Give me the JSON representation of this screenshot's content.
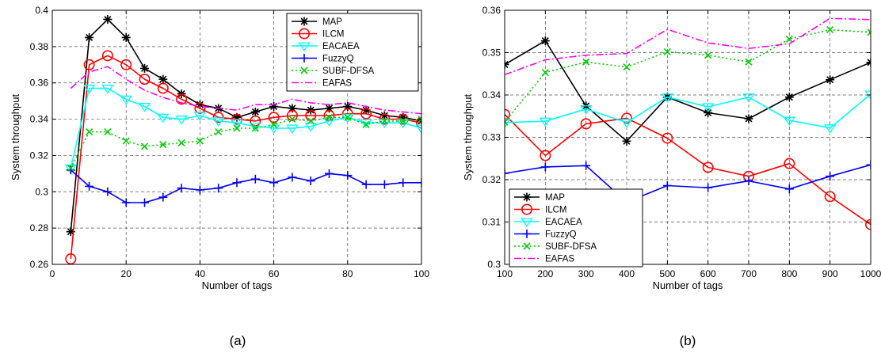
{
  "chart_data": [
    {
      "type": "line",
      "panel_label": "(a)",
      "xlabel": "Number of tags",
      "ylabel": "System throughput",
      "xlim": [
        0,
        100
      ],
      "ylim": [
        0.26,
        0.4
      ],
      "xticks": [
        0,
        20,
        40,
        60,
        80,
        100
      ],
      "yticks": [
        0.26,
        0.28,
        0.3,
        0.32,
        0.34,
        0.36,
        0.38,
        0.4
      ],
      "xtick_labels": [
        "0",
        "20",
        "40",
        "60",
        "80",
        "100"
      ],
      "ytick_labels": [
        "0.26",
        "0.28",
        "0.3",
        "0.32",
        "0.34",
        "0.36",
        "0.38",
        "0.4"
      ],
      "grid": true,
      "legend_position": "top-right",
      "x": [
        5,
        10,
        15,
        20,
        25,
        30,
        35,
        40,
        45,
        50,
        55,
        60,
        65,
        70,
        75,
        80,
        85,
        90,
        95,
        100
      ],
      "series": [
        {
          "name": "MAP",
          "values": [
            0.278,
            0.385,
            0.395,
            0.385,
            0.368,
            0.362,
            0.354,
            0.348,
            0.346,
            0.341,
            0.344,
            0.347,
            0.346,
            0.345,
            0.346,
            0.347,
            0.345,
            0.342,
            0.341,
            0.339
          ]
        },
        {
          "name": "ILCM",
          "values": [
            0.263,
            0.37,
            0.375,
            0.37,
            0.362,
            0.357,
            0.351,
            0.346,
            0.341,
            0.34,
            0.339,
            0.341,
            0.342,
            0.342,
            0.342,
            0.343,
            0.343,
            0.34,
            0.34,
            0.338
          ]
        },
        {
          "name": "EACAEA",
          "values": [
            0.313,
            0.357,
            0.357,
            0.351,
            0.347,
            0.341,
            0.34,
            0.342,
            0.339,
            0.338,
            0.336,
            0.335,
            0.335,
            0.336,
            0.339,
            0.341,
            0.338,
            0.338,
            0.338,
            0.335
          ]
        },
        {
          "name": "FuzzyQ",
          "values": [
            0.312,
            0.303,
            0.3,
            0.294,
            0.294,
            0.297,
            0.302,
            0.301,
            0.302,
            0.305,
            0.307,
            0.305,
            0.308,
            0.306,
            0.31,
            0.309,
            0.304,
            0.304,
            0.305,
            0.305
          ]
        },
        {
          "name": "SUBF-DFSA",
          "values": [
            0.313,
            0.333,
            0.333,
            0.328,
            0.325,
            0.326,
            0.327,
            0.328,
            0.333,
            0.335,
            0.335,
            0.337,
            0.34,
            0.339,
            0.341,
            0.341,
            0.337,
            0.339,
            0.339,
            0.34
          ]
        },
        {
          "name": "EAFAS",
          "values": [
            0.357,
            0.366,
            0.369,
            0.362,
            0.356,
            0.352,
            0.349,
            0.347,
            0.346,
            0.345,
            0.348,
            0.348,
            0.351,
            0.349,
            0.348,
            0.349,
            0.347,
            0.345,
            0.344,
            0.343
          ]
        }
      ]
    },
    {
      "type": "line",
      "panel_label": "(b)",
      "xlabel": "Number of tags",
      "ylabel": "System throughput",
      "xlim": [
        100,
        1000
      ],
      "ylim": [
        0.3,
        0.36
      ],
      "xticks": [
        100,
        200,
        300,
        400,
        500,
        600,
        700,
        800,
        900,
        1000
      ],
      "yticks": [
        0.3,
        0.31,
        0.32,
        0.33,
        0.34,
        0.35,
        0.36
      ],
      "xtick_labels": [
        "100",
        "200",
        "300",
        "400",
        "500",
        "600",
        "700",
        "800",
        "900",
        "1000"
      ],
      "ytick_labels": [
        "0.3",
        "0.31",
        "0.32",
        "0.33",
        "0.34",
        "0.35",
        "0.36"
      ],
      "grid": true,
      "legend_position": "bottom-left",
      "x": [
        100,
        200,
        300,
        400,
        500,
        600,
        700,
        800,
        900,
        1000
      ],
      "series": [
        {
          "name": "MAP",
          "values": [
            0.3472,
            0.3528,
            0.3374,
            0.3291,
            0.3395,
            0.3358,
            0.3344,
            0.3395,
            0.3436,
            0.3477
          ]
        },
        {
          "name": "ILCM",
          "values": [
            0.3354,
            0.3257,
            0.3332,
            0.3345,
            0.3298,
            0.3229,
            0.3208,
            0.3238,
            0.316,
            0.3094
          ]
        },
        {
          "name": "EACAEA",
          "values": [
            0.3335,
            0.3338,
            0.3367,
            0.3335,
            0.3395,
            0.3372,
            0.3395,
            0.334,
            0.3322,
            0.3402
          ]
        },
        {
          "name": "FuzzyQ",
          "values": [
            0.3215,
            0.323,
            0.3233,
            0.3147,
            0.3186,
            0.3181,
            0.3197,
            0.3178,
            0.3208,
            0.3235
          ]
        },
        {
          "name": "SUBF-DFSA",
          "values": [
            0.3336,
            0.3453,
            0.3478,
            0.3466,
            0.3502,
            0.3494,
            0.3478,
            0.3532,
            0.3554,
            0.3548
          ]
        },
        {
          "name": "EAFAS",
          "values": [
            0.3448,
            0.3483,
            0.3494,
            0.3498,
            0.3555,
            0.3523,
            0.351,
            0.3521,
            0.3581,
            0.3578
          ]
        }
      ]
    }
  ],
  "series_styles": [
    {
      "color": "#000000",
      "dash": "",
      "marker": "star"
    },
    {
      "color": "#ff0000",
      "dash": "",
      "marker": "circle"
    },
    {
      "color": "#00ffff",
      "dash": "",
      "marker": "triangle-down"
    },
    {
      "color": "#0000ff",
      "dash": "",
      "marker": "plus"
    },
    {
      "color": "#00cc00",
      "dash": "2,3",
      "marker": "x"
    },
    {
      "color": "#ff00ff",
      "dash": "9,3,2,3",
      "marker": "none"
    }
  ]
}
